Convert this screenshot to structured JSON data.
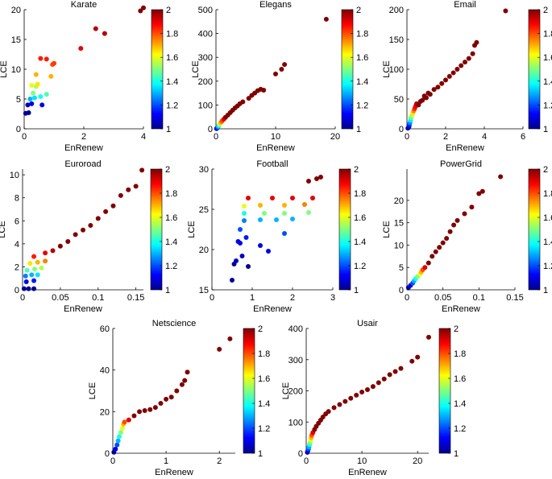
{
  "figure": {
    "xlabel": "EnRenew",
    "ylabel": "LCE",
    "colorbar": {
      "min": 1,
      "max": 2,
      "ticks": [
        "1",
        "1.2",
        "1.4",
        "1.6",
        "1.8",
        "2"
      ]
    }
  },
  "chart_data": [
    {
      "type": "scatter",
      "title": "Karate",
      "xlabel": "EnRenew",
      "ylabel": "LCE",
      "xlim": [
        0,
        4
      ],
      "ylim": [
        0,
        20
      ],
      "xticks": [
        0,
        2,
        4
      ],
      "yticks": [
        0,
        5,
        10,
        15,
        20
      ],
      "points": [
        [
          0.05,
          2.6,
          1.0
        ],
        [
          0.15,
          2.7,
          1.0
        ],
        [
          0.12,
          4.0,
          1.05
        ],
        [
          0.25,
          4.2,
          1.08
        ],
        [
          0.6,
          4.0,
          1.1
        ],
        [
          0.2,
          5.0,
          1.3
        ],
        [
          0.35,
          5.2,
          1.35
        ],
        [
          0.55,
          5.4,
          1.4
        ],
        [
          0.75,
          5.8,
          1.45
        ],
        [
          0.3,
          6.0,
          1.5
        ],
        [
          0.4,
          7.1,
          1.55
        ],
        [
          0.25,
          7.3,
          1.6
        ],
        [
          0.45,
          7.5,
          1.65
        ],
        [
          0.4,
          9.1,
          1.7
        ],
        [
          0.9,
          8.8,
          1.7
        ],
        [
          0.95,
          10.8,
          1.8
        ],
        [
          1.0,
          11.0,
          1.82
        ],
        [
          0.55,
          11.8,
          1.85
        ],
        [
          0.75,
          11.7,
          1.85
        ],
        [
          1.9,
          13.5,
          1.9
        ],
        [
          2.4,
          16.8,
          1.95
        ],
        [
          2.7,
          16.0,
          1.95
        ],
        [
          3.9,
          19.8,
          2.0
        ],
        [
          4.0,
          20.3,
          2.0
        ]
      ]
    },
    {
      "type": "scatter",
      "title": "Elegans",
      "xlabel": "EnRenew",
      "ylabel": "LCE",
      "xlim": [
        0,
        20
      ],
      "ylim": [
        0,
        500
      ],
      "xticks": [
        0,
        10,
        20
      ],
      "yticks": [
        0,
        100,
        200,
        300,
        400,
        500
      ],
      "points": [
        [
          0.1,
          1,
          1.0
        ],
        [
          0.2,
          3,
          1.1
        ],
        [
          0.3,
          6,
          1.2
        ],
        [
          0.4,
          10,
          1.3
        ],
        [
          0.5,
          14,
          1.4
        ],
        [
          0.6,
          18,
          1.5
        ],
        [
          0.7,
          22,
          1.6
        ],
        [
          0.8,
          26,
          1.7
        ],
        [
          1.0,
          32,
          1.8
        ],
        [
          1.3,
          40,
          1.9
        ],
        [
          1.6,
          48,
          2.0
        ],
        [
          2.0,
          58,
          2.0
        ],
        [
          2.4,
          68,
          2.0
        ],
        [
          2.8,
          78,
          2.0
        ],
        [
          3.2,
          88,
          2.0
        ],
        [
          3.6,
          96,
          2.0
        ],
        [
          4.0,
          105,
          2.0
        ],
        [
          4.5,
          113,
          2.0
        ],
        [
          5.5,
          128,
          2.0
        ],
        [
          6.0,
          140,
          2.0
        ],
        [
          6.5,
          150,
          2.0
        ],
        [
          7.0,
          160,
          2.0
        ],
        [
          7.5,
          166,
          2.0
        ],
        [
          8.0,
          162,
          2.0
        ],
        [
          10.0,
          230,
          2.0
        ],
        [
          11.0,
          250,
          2.0
        ],
        [
          11.5,
          270,
          2.0
        ],
        [
          18.5,
          460,
          2.0
        ]
      ]
    },
    {
      "type": "scatter",
      "title": "Email",
      "xlabel": "EnRenew",
      "ylabel": "LCE",
      "xlim": [
        0,
        6
      ],
      "ylim": [
        0,
        200
      ],
      "xticks": [
        0,
        2,
        4,
        6
      ],
      "yticks": [
        0,
        50,
        100,
        150,
        200
      ],
      "points": [
        [
          0.05,
          1,
          1.0
        ],
        [
          0.1,
          3,
          1.05
        ],
        [
          0.12,
          6,
          1.15
        ],
        [
          0.15,
          10,
          1.25
        ],
        [
          0.18,
          14,
          1.35
        ],
        [
          0.2,
          18,
          1.45
        ],
        [
          0.25,
          22,
          1.55
        ],
        [
          0.3,
          26,
          1.65
        ],
        [
          0.35,
          30,
          1.75
        ],
        [
          0.4,
          34,
          1.85
        ],
        [
          0.45,
          38,
          1.9
        ],
        [
          0.5,
          42,
          1.95
        ],
        [
          0.6,
          40,
          2.0
        ],
        [
          0.7,
          46,
          2.0
        ],
        [
          0.8,
          48,
          2.0
        ],
        [
          0.9,
          55,
          2.0
        ],
        [
          1.0,
          52,
          2.0
        ],
        [
          1.1,
          60,
          2.0
        ],
        [
          1.2,
          58,
          2.0
        ],
        [
          1.4,
          66,
          2.0
        ],
        [
          1.6,
          70,
          2.0
        ],
        [
          1.8,
          76,
          2.0
        ],
        [
          2.0,
          82,
          2.0
        ],
        [
          2.2,
          88,
          2.0
        ],
        [
          2.4,
          94,
          2.0
        ],
        [
          2.6,
          100,
          2.0
        ],
        [
          2.8,
          106,
          2.0
        ],
        [
          3.0,
          112,
          2.0
        ],
        [
          3.2,
          118,
          2.0
        ],
        [
          3.4,
          126,
          2.0
        ],
        [
          3.5,
          140,
          2.0
        ],
        [
          3.6,
          145,
          2.0
        ],
        [
          5.1,
          198,
          2.0
        ]
      ]
    },
    {
      "type": "scatter",
      "title": "Euroroad",
      "xlabel": "EnRenew",
      "ylabel": "LCE",
      "xlim": [
        0,
        0.16
      ],
      "ylim": [
        0,
        10.5
      ],
      "xticks": [
        0,
        0.05,
        0.1,
        0.15
      ],
      "yticks": [
        0,
        2,
        4,
        6,
        8,
        10
      ],
      "points": [
        [
          0.002,
          0.1,
          1.0
        ],
        [
          0.008,
          0.1,
          1.0
        ],
        [
          0.015,
          0.1,
          1.0
        ],
        [
          0.005,
          0.7,
          1.1
        ],
        [
          0.015,
          0.8,
          1.15
        ],
        [
          0.004,
          1.2,
          1.25
        ],
        [
          0.012,
          1.3,
          1.3
        ],
        [
          0.02,
          1.3,
          1.35
        ],
        [
          0.006,
          1.7,
          1.45
        ],
        [
          0.016,
          1.8,
          1.5
        ],
        [
          0.025,
          1.9,
          1.55
        ],
        [
          0.01,
          2.3,
          1.65
        ],
        [
          0.02,
          2.4,
          1.7
        ],
        [
          0.03,
          2.5,
          1.75
        ],
        [
          0.015,
          2.9,
          1.85
        ],
        [
          0.03,
          3.2,
          1.9
        ],
        [
          0.04,
          3.4,
          1.95
        ],
        [
          0.05,
          3.8,
          2.0
        ],
        [
          0.06,
          4.2,
          2.0
        ],
        [
          0.07,
          4.8,
          2.0
        ],
        [
          0.08,
          5.2,
          2.0
        ],
        [
          0.09,
          5.6,
          2.0
        ],
        [
          0.1,
          6.2,
          2.0
        ],
        [
          0.11,
          6.8,
          2.0
        ],
        [
          0.12,
          7.3,
          2.0
        ],
        [
          0.13,
          8.2,
          2.0
        ],
        [
          0.14,
          8.7,
          2.0
        ],
        [
          0.15,
          9.0,
          2.0
        ],
        [
          0.158,
          10.4,
          2.0
        ]
      ]
    },
    {
      "type": "scatter",
      "title": "Football",
      "xlabel": "EnRenew",
      "ylabel": "LCE",
      "xlim": [
        0,
        3
      ],
      "ylim": [
        15,
        30
      ],
      "xticks": [
        0,
        1,
        2,
        3
      ],
      "yticks": [
        15,
        20,
        25,
        30
      ],
      "points": [
        [
          0.5,
          16.2,
          1.0
        ],
        [
          0.55,
          18.2,
          1.0
        ],
        [
          0.6,
          18.6,
          1.05
        ],
        [
          0.75,
          19.2,
          1.05
        ],
        [
          0.9,
          17.9,
          1.0
        ],
        [
          0.65,
          21.0,
          1.1
        ],
        [
          0.7,
          20.8,
          1.1
        ],
        [
          1.4,
          19.8,
          1.1
        ],
        [
          1.2,
          20.5,
          1.1
        ],
        [
          0.85,
          21.5,
          1.15
        ],
        [
          0.7,
          22.5,
          1.2
        ],
        [
          1.8,
          22.0,
          1.2
        ],
        [
          0.8,
          23.6,
          1.25
        ],
        [
          1.2,
          23.7,
          1.3
        ],
        [
          1.6,
          23.7,
          1.3
        ],
        [
          2.0,
          23.8,
          1.3
        ],
        [
          0.8,
          24.5,
          1.4
        ],
        [
          1.3,
          24.5,
          1.5
        ],
        [
          1.8,
          24.5,
          1.5
        ],
        [
          2.4,
          24.6,
          1.5
        ],
        [
          0.8,
          25.4,
          1.6
        ],
        [
          1.2,
          25.5,
          1.7
        ],
        [
          1.8,
          25.5,
          1.7
        ],
        [
          2.3,
          25.6,
          1.75
        ],
        [
          0.9,
          26.4,
          1.9
        ],
        [
          1.5,
          26.4,
          1.9
        ],
        [
          2.0,
          26.4,
          1.9
        ],
        [
          2.5,
          26.4,
          1.9
        ],
        [
          2.4,
          28.5,
          2.0
        ],
        [
          2.6,
          28.8,
          2.0
        ],
        [
          2.7,
          29.0,
          2.0
        ]
      ]
    },
    {
      "type": "scatter",
      "title": "PowerGrid",
      "xlabel": "EnRenew",
      "ylabel": "LCE",
      "xlim": [
        0,
        0.15
      ],
      "ylim": [
        0,
        27
      ],
      "xticks": [
        0,
        0.05,
        0.1,
        0.15
      ],
      "yticks": [
        0,
        5,
        10,
        15,
        20
      ],
      "points": [
        [
          0.002,
          0.5,
          1.0
        ],
        [
          0.005,
          1.0,
          1.1
        ],
        [
          0.008,
          1.5,
          1.2
        ],
        [
          0.01,
          2.0,
          1.3
        ],
        [
          0.012,
          2.5,
          1.4
        ],
        [
          0.015,
          3.0,
          1.5
        ],
        [
          0.018,
          3.5,
          1.6
        ],
        [
          0.02,
          4.0,
          1.7
        ],
        [
          0.022,
          4.5,
          1.8
        ],
        [
          0.025,
          5.0,
          1.9
        ],
        [
          0.03,
          6.0,
          2.0
        ],
        [
          0.035,
          7.5,
          2.0
        ],
        [
          0.04,
          8.5,
          2.0
        ],
        [
          0.045,
          9.5,
          2.0
        ],
        [
          0.05,
          10.5,
          2.0
        ],
        [
          0.055,
          11.5,
          2.0
        ],
        [
          0.06,
          13.0,
          2.0
        ],
        [
          0.065,
          14.5,
          2.0
        ],
        [
          0.07,
          15.5,
          2.0
        ],
        [
          0.08,
          17.0,
          2.0
        ],
        [
          0.09,
          18.5,
          2.0
        ],
        [
          0.1,
          21.5,
          2.0
        ],
        [
          0.105,
          22.0,
          2.0
        ],
        [
          0.13,
          25.3,
          2.0
        ]
      ]
    },
    {
      "type": "scatter",
      "title": "Netscience",
      "xlabel": "EnRenew",
      "ylabel": "LCE",
      "xlim": [
        0,
        2.3
      ],
      "ylim": [
        0,
        60
      ],
      "xticks": [
        0,
        1,
        2
      ],
      "yticks": [
        0,
        20,
        40,
        60
      ],
      "points": [
        [
          0.02,
          0.5,
          1.0
        ],
        [
          0.05,
          2,
          1.1
        ],
        [
          0.08,
          4,
          1.2
        ],
        [
          0.1,
          6,
          1.3
        ],
        [
          0.12,
          8,
          1.4
        ],
        [
          0.15,
          10,
          1.5
        ],
        [
          0.18,
          12,
          1.6
        ],
        [
          0.2,
          14,
          1.7
        ],
        [
          0.22,
          15,
          1.8
        ],
        [
          0.3,
          16,
          1.9
        ],
        [
          0.4,
          18,
          2.0
        ],
        [
          0.5,
          20,
          2.0
        ],
        [
          0.6,
          20.5,
          2.0
        ],
        [
          0.7,
          21,
          2.0
        ],
        [
          0.8,
          22,
          2.0
        ],
        [
          0.9,
          24,
          2.0
        ],
        [
          1.0,
          26,
          2.0
        ],
        [
          1.1,
          27,
          2.0
        ],
        [
          1.2,
          30,
          2.0
        ],
        [
          1.3,
          33,
          2.0
        ],
        [
          1.35,
          35,
          2.0
        ],
        [
          1.4,
          39,
          2.0
        ],
        [
          2.0,
          50,
          2.0
        ],
        [
          2.2,
          55,
          2.0
        ]
      ]
    },
    {
      "type": "scatter",
      "title": "Usair",
      "xlabel": "EnRenew",
      "ylabel": "LCE",
      "xlim": [
        0,
        22
      ],
      "ylim": [
        0,
        400
      ],
      "xticks": [
        0,
        10,
        20
      ],
      "yticks": [
        0,
        100,
        200,
        300,
        400
      ],
      "points": [
        [
          0.2,
          3,
          1.0
        ],
        [
          0.3,
          8,
          1.1
        ],
        [
          0.4,
          14,
          1.2
        ],
        [
          0.5,
          20,
          1.3
        ],
        [
          0.6,
          28,
          1.4
        ],
        [
          0.7,
          35,
          1.5
        ],
        [
          0.8,
          42,
          1.6
        ],
        [
          0.9,
          50,
          1.7
        ],
        [
          1.0,
          58,
          1.8
        ],
        [
          1.2,
          66,
          1.9
        ],
        [
          1.5,
          76,
          2.0
        ],
        [
          1.8,
          86,
          2.0
        ],
        [
          2.2,
          96,
          2.0
        ],
        [
          2.6,
          106,
          2.0
        ],
        [
          3.0,
          116,
          2.0
        ],
        [
          3.5,
          126,
          2.0
        ],
        [
          4.0,
          134,
          2.0
        ],
        [
          5.0,
          146,
          2.0
        ],
        [
          6.0,
          156,
          2.0
        ],
        [
          7.0,
          166,
          2.0
        ],
        [
          8.0,
          176,
          2.0
        ],
        [
          9.0,
          186,
          2.0
        ],
        [
          10.0,
          196,
          2.0
        ],
        [
          11.0,
          204,
          2.0
        ],
        [
          12.0,
          214,
          2.0
        ],
        [
          13.0,
          226,
          2.0
        ],
        [
          14.0,
          238,
          2.0
        ],
        [
          15.0,
          252,
          2.0
        ],
        [
          16.0,
          262,
          2.0
        ],
        [
          17.0,
          272,
          2.0
        ],
        [
          19.0,
          295,
          2.0
        ],
        [
          20.0,
          308,
          2.0
        ],
        [
          22.0,
          372,
          2.0
        ]
      ]
    }
  ]
}
